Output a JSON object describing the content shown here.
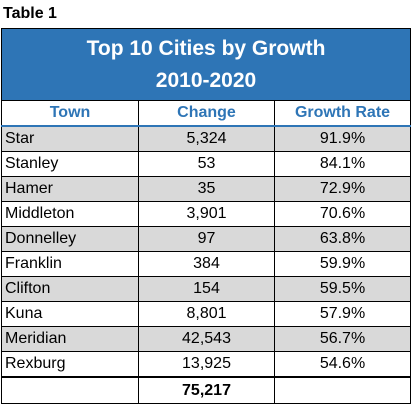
{
  "caption": "Table 1",
  "chart_data": {
    "type": "table",
    "title_line1": "Top 10 Cities by Growth",
    "title_line2": "2010-2020",
    "columns": [
      "Town",
      "Change",
      "Growth Rate"
    ],
    "rows": [
      {
        "town": "Star",
        "change": "5,324",
        "rate": "91.9%"
      },
      {
        "town": "Stanley",
        "change": "53",
        "rate": "84.1%"
      },
      {
        "town": "Hamer",
        "change": "35",
        "rate": "72.9%"
      },
      {
        "town": "Middleton",
        "change": "3,901",
        "rate": "70.6%"
      },
      {
        "town": "Donnelley",
        "change": "97",
        "rate": "63.8%"
      },
      {
        "town": "Franklin",
        "change": "384",
        "rate": "59.9%"
      },
      {
        "town": "Clifton",
        "change": "154",
        "rate": "59.5%"
      },
      {
        "town": "Kuna",
        "change": "8,801",
        "rate": "57.9%"
      },
      {
        "town": "Meridian",
        "change": "42,543",
        "rate": "56.7%"
      },
      {
        "town": "Rexburg",
        "change": "13,925",
        "rate": "54.6%"
      }
    ],
    "total_change": "75,217"
  }
}
